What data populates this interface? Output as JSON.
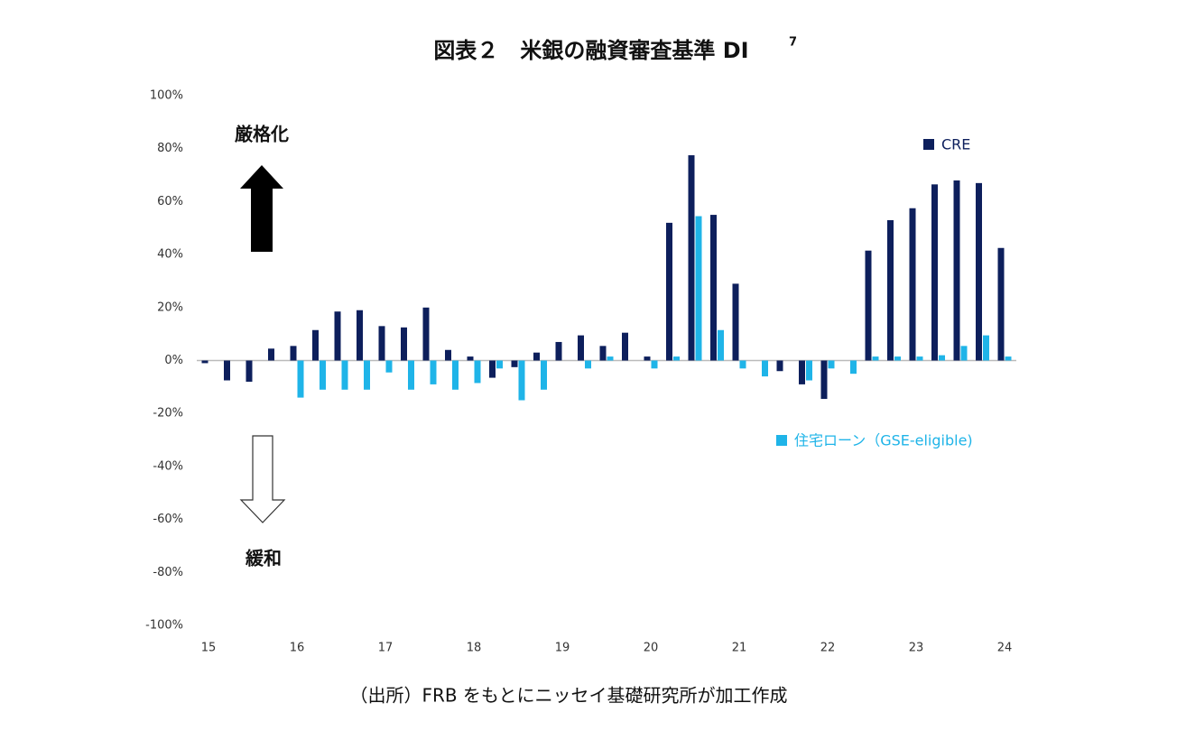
{
  "chart_data": {
    "type": "bar",
    "title": "図表２　米銀の融資審査基準 DI",
    "title_note": "7",
    "annotations": {
      "up": "厳格化",
      "down": "緩和"
    },
    "source": "（出所）FRB をもとにニッセイ基礎研究所が加工作成",
    "categories": [
      "15",
      null,
      null,
      null,
      "16",
      null,
      null,
      null,
      "17",
      null,
      null,
      null,
      "18",
      null,
      null,
      null,
      "19",
      null,
      null,
      null,
      "20",
      null,
      null,
      null,
      "21",
      null,
      null,
      null,
      "22",
      null,
      null,
      null,
      "23",
      null,
      null,
      null,
      "24"
    ],
    "series": [
      {
        "name": "CRE",
        "color": "#0d1f5c",
        "values": [
          -1,
          -7.5,
          -8,
          4.5,
          5.5,
          11.5,
          18.5,
          19,
          13,
          12.5,
          20,
          4,
          1.5,
          -6.5,
          -2.5,
          3,
          7,
          9.5,
          5.5,
          10.5,
          1.5,
          52,
          77.5,
          55,
          29,
          0,
          -4,
          -9,
          -14.5,
          0,
          41.5,
          53,
          57.5,
          66.5,
          68,
          67,
          42.5
        ]
      },
      {
        "name": "住宅ローン（GSE-eligible)",
        "color": "#1fb4e8",
        "values": [
          0,
          0,
          0,
          0,
          -14,
          -11,
          -11,
          -11,
          -4.5,
          -11,
          -9,
          -11,
          -8.5,
          -3,
          -15,
          -11,
          0,
          -3,
          1.5,
          0,
          -3,
          1.5,
          54.5,
          11.5,
          -3,
          -6,
          0,
          -7.5,
          -3,
          -5,
          1.5,
          1.5,
          1.5,
          2,
          5.5,
          9.5,
          1.5
        ]
      }
    ],
    "ylim": [
      -100,
      100
    ],
    "yticks": [
      {
        "value": -100,
        "label": "-100%"
      },
      {
        "value": -80,
        "label": "-80%"
      },
      {
        "value": -60,
        "label": "-60%"
      },
      {
        "value": -40,
        "label": "-40%"
      },
      {
        "value": -20,
        "label": "-20%"
      },
      {
        "value": 0,
        "label": "0%"
      },
      {
        "value": 20,
        "label": "20%"
      },
      {
        "value": 40,
        "label": "40%"
      },
      {
        "value": 60,
        "label": "60%"
      },
      {
        "value": 80,
        "label": "80%"
      },
      {
        "value": 100,
        "label": "100%"
      }
    ],
    "grid": false
  }
}
